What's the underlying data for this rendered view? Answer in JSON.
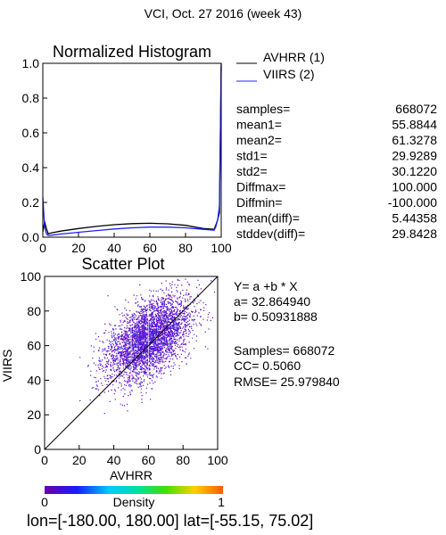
{
  "header": {
    "title": "VCI,  Oct. 27 2016 (week 43)"
  },
  "colors": {
    "avhrr": "#000000",
    "viirs": "#2020ff",
    "background": "#ffffff"
  },
  "histogram": {
    "legend": [
      {
        "label": "AVHRR (1)",
        "color": "#000000"
      },
      {
        "label": "VIIRS (2)",
        "color": "#2020ff"
      }
    ],
    "stats": [
      {
        "label": "samples=",
        "value": "668072"
      },
      {
        "label": "mean1=",
        "value": "55.8844"
      },
      {
        "label": "mean2=",
        "value": "61.3278"
      },
      {
        "label": "std1=",
        "value": "29.9289"
      },
      {
        "label": "std2=",
        "value": "30.1220"
      },
      {
        "label": "Diffmax=",
        "value": "100.000"
      },
      {
        "label": "Diffmin=",
        "value": "-100.000"
      },
      {
        "label": "mean(diff)=",
        "value": "5.44358"
      },
      {
        "label": "stddev(diff)=",
        "value": "29.8428"
      }
    ]
  },
  "scatter": {
    "equation": "Y= a +b * X",
    "a_line": "a= 32.864940",
    "b_line": "b= 0.50931888",
    "samples_line": "Samples= 668072",
    "cc_line": "CC=  0.5060",
    "rmse_line": "RMSE= 25.979840"
  },
  "colorbar": {
    "label": "Density",
    "min_label": "0",
    "max_label": "1"
  },
  "footer": {
    "range": "lon=[-180.00, 180.00] lat=[-55.15, 75.02]"
  },
  "chart_data": [
    {
      "type": "line",
      "title": "Normalized Histogram",
      "xlabel": "",
      "ylabel": "",
      "xlim": [
        0,
        100
      ],
      "ylim": [
        0,
        1
      ],
      "xticks": [
        0,
        20,
        40,
        60,
        80,
        100
      ],
      "yticks": [
        0.0,
        0.2,
        0.4,
        0.6,
        0.8,
        1.0
      ],
      "ytick_labels": [
        "0.0",
        "0.2",
        "0.4",
        "0.6",
        "0.8",
        "1.0"
      ],
      "series": [
        {
          "name": "AVHRR (1)",
          "color": "#000000",
          "x": [
            0,
            1,
            2,
            3,
            5,
            10,
            20,
            30,
            40,
            50,
            60,
            70,
            80,
            90,
            96,
            97,
            98,
            99,
            100
          ],
          "y": [
            0.03,
            0.09,
            0.05,
            0.02,
            0.025,
            0.035,
            0.05,
            0.062,
            0.072,
            0.078,
            0.08,
            0.077,
            0.068,
            0.05,
            0.045,
            0.07,
            0.1,
            0.14,
            1.0
          ]
        },
        {
          "name": "VIIRS (2)",
          "color": "#2020ff",
          "x": [
            0,
            1,
            2,
            3,
            5,
            10,
            20,
            30,
            40,
            50,
            60,
            70,
            80,
            90,
            96,
            97,
            98,
            99,
            100
          ],
          "y": [
            0.23,
            0.06,
            0.02,
            0.01,
            0.012,
            0.018,
            0.028,
            0.038,
            0.047,
            0.054,
            0.058,
            0.058,
            0.054,
            0.045,
            0.04,
            0.06,
            0.1,
            0.18,
            0.98
          ]
        }
      ]
    },
    {
      "type": "scatter",
      "title": "Scatter Plot",
      "xlabel": "AVHRR",
      "ylabel": "VIIRS",
      "xlim": [
        0,
        100
      ],
      "ylim": [
        0,
        100
      ],
      "xticks": [
        0,
        20,
        40,
        60,
        80,
        100
      ],
      "yticks": [
        0,
        20,
        40,
        60,
        80,
        100
      ],
      "cloud": {
        "mean_x": 60,
        "mean_y": 64,
        "std_x": 12,
        "std_y": 12,
        "corr": 0.5,
        "x_range": [
          20,
          98
        ],
        "y_range": [
          20,
          100
        ]
      },
      "reference_line": {
        "x": [
          0,
          100
        ],
        "y": [
          0,
          100
        ]
      }
    }
  ]
}
